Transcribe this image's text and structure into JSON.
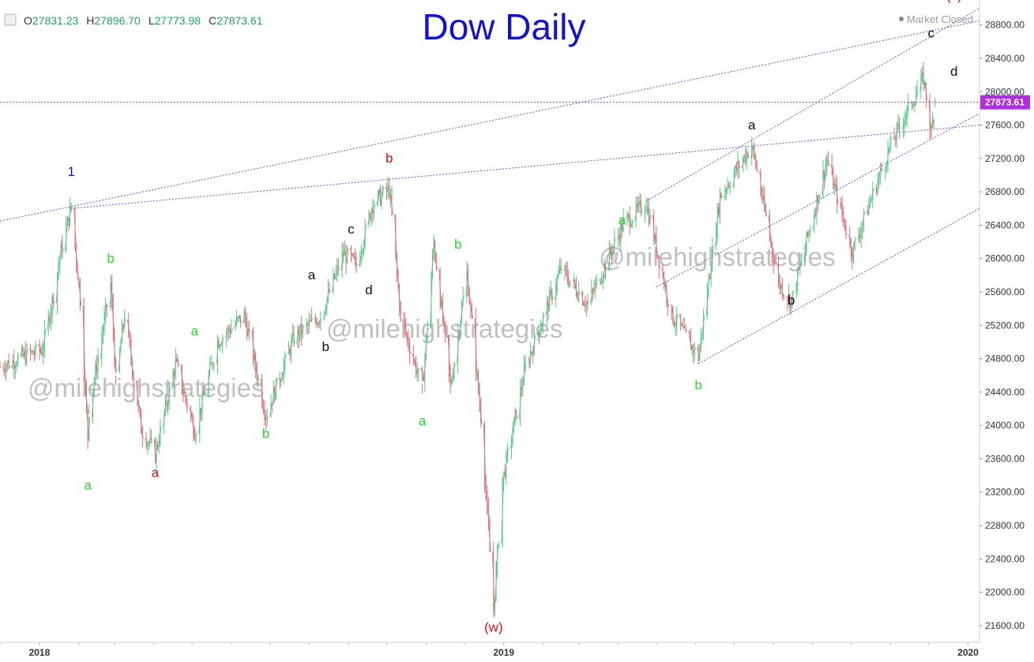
{
  "header": {
    "title": "Dow Daily",
    "status_label": "Market Closed",
    "ohlc": {
      "o_label": "O",
      "o_value": "27831.23",
      "h_label": "H",
      "h_value": "27896.70",
      "l_label": "L",
      "l_value": "27773.98",
      "c_label": "C",
      "c_value": "27873.61"
    }
  },
  "watermark": "@milehighstrategies",
  "colors": {
    "title": "#1010d8",
    "up": "#5ac88a",
    "down": "#e0707a",
    "price_line": "#b030e0",
    "trendline": "#5a5ae0",
    "label_green": "#22dd22",
    "label_red": "#e01010",
    "label_blue": "#1010c8",
    "label_black": "#111111",
    "watermark": "#c0c0c0",
    "ohlc_value": "#27a06a"
  },
  "chart_data": {
    "type": "candlestick",
    "title": "Dow Daily",
    "ylim": [
      21400,
      29100
    ],
    "y_ticks": [
      "28800.00",
      "28400.00",
      "28000.00",
      "27600.00",
      "27200.00",
      "26800.00",
      "26400.00",
      "26000.00",
      "25600.00",
      "25200.00",
      "24800.00",
      "24400.00",
      "24000.00",
      "23600.00",
      "23200.00",
      "22800.00",
      "22400.00",
      "22000.00",
      "21600.00"
    ],
    "x_ticks": [
      {
        "label": "2018",
        "date": "2018-01-01"
      },
      {
        "label": "2019",
        "date": "2019-01-01"
      },
      {
        "label": "2020",
        "date": "2020-01-01"
      }
    ],
    "x_range": [
      "2017-12-01",
      "2020-01-10"
    ],
    "last_price": 27873.61,
    "last_price_label": "27873.61",
    "price_path": [
      [
        "2017-12-01",
        24700
      ],
      [
        "2017-12-15",
        24800
      ],
      [
        "2018-01-03",
        24900
      ],
      [
        "2018-01-10",
        25400
      ],
      [
        "2018-01-18",
        26100
      ],
      [
        "2018-01-26",
        26616
      ],
      [
        "2018-02-02",
        25520
      ],
      [
        "2018-02-08",
        23860
      ],
      [
        "2018-02-09",
        24190
      ],
      [
        "2018-02-26",
        25700
      ],
      [
        "2018-03-02",
        24540
      ],
      [
        "2018-03-09",
        25330
      ],
      [
        "2018-03-22",
        23960
      ],
      [
        "2018-04-02",
        23650
      ],
      [
        "2018-04-18",
        24750
      ],
      [
        "2018-05-03",
        23930
      ],
      [
        "2018-05-21",
        25010
      ],
      [
        "2018-06-11",
        25320
      ],
      [
        "2018-06-28",
        24120
      ],
      [
        "2018-07-20",
        25050
      ],
      [
        "2018-08-10",
        25310
      ],
      [
        "2018-08-28",
        26060
      ],
      [
        "2018-09-07",
        25920
      ],
      [
        "2018-09-20",
        26660
      ],
      [
        "2018-10-03",
        26830
      ],
      [
        "2018-10-12",
        25300
      ],
      [
        "2018-10-29",
        24440
      ],
      [
        "2018-11-07",
        26190
      ],
      [
        "2018-11-20",
        24460
      ],
      [
        "2018-12-03",
        25830
      ],
      [
        "2018-12-14",
        24100
      ],
      [
        "2018-12-24",
        21790
      ],
      [
        "2018-12-31",
        23330
      ],
      [
        "2019-01-18",
        24700
      ],
      [
        "2019-02-15",
        25880
      ],
      [
        "2019-03-08",
        25450
      ],
      [
        "2019-04-05",
        26420
      ],
      [
        "2019-04-23",
        26660
      ],
      [
        "2019-05-13",
        25320
      ],
      [
        "2019-06-03",
        24820
      ],
      [
        "2019-06-20",
        26750
      ],
      [
        "2019-07-15",
        27360
      ],
      [
        "2019-08-05",
        25710
      ],
      [
        "2019-08-15",
        25480
      ],
      [
        "2019-09-12",
        27180
      ],
      [
        "2019-10-02",
        26080
      ],
      [
        "2019-10-18",
        26770
      ],
      [
        "2019-11-01",
        27350
      ],
      [
        "2019-11-12",
        27690
      ],
      [
        "2019-11-27",
        28160
      ],
      [
        "2019-12-03",
        27500
      ],
      [
        "2019-12-06",
        27873
      ]
    ],
    "trendlines": [
      {
        "name": "upper channel",
        "from": [
          "2017-12-01",
          26450
        ],
        "to": [
          "2020-01-10",
          28850
        ]
      },
      {
        "name": "middle line",
        "from": [
          "2018-01-26",
          26600
        ],
        "to": [
          "2020-01-10",
          27600
        ]
      },
      {
        "name": "c channel top",
        "from": [
          "2019-04-23",
          26690
        ],
        "to": [
          "2020-01-10",
          29000
        ]
      },
      {
        "name": "channel mid",
        "from": [
          "2019-05-01",
          25660
        ],
        "to": [
          "2020-01-10",
          27740
        ]
      },
      {
        "name": "channel bottom",
        "from": [
          "2019-06-03",
          24740
        ],
        "to": [
          "2020-01-10",
          26600
        ]
      }
    ],
    "wave_labels": [
      {
        "text": "1",
        "color": "blue",
        "date": "2018-01-26",
        "y": 26990
      },
      {
        "text": "b",
        "color": "green",
        "date": "2018-02-26",
        "y": 25950
      },
      {
        "text": "a",
        "color": "green",
        "date": "2018-02-08",
        "y": 23230
      },
      {
        "text": "a",
        "color": "red",
        "date": "2018-04-02",
        "y": 23380
      },
      {
        "text": "a",
        "color": "green",
        "date": "2018-05-03",
        "y": 25080
      },
      {
        "text": "b",
        "color": "green",
        "date": "2018-06-28",
        "y": 23850
      },
      {
        "text": "a",
        "color": "black",
        "date": "2018-08-03",
        "y": 25750
      },
      {
        "text": "b",
        "color": "black",
        "date": "2018-08-14",
        "y": 24890
      },
      {
        "text": "c",
        "color": "black",
        "date": "2018-09-03",
        "y": 26300
      },
      {
        "text": "d",
        "color": "black",
        "date": "2018-09-17",
        "y": 25570
      },
      {
        "text": "b",
        "color": "red",
        "date": "2018-10-03",
        "y": 27150
      },
      {
        "text": "a",
        "color": "green",
        "date": "2018-10-29",
        "y": 24000
      },
      {
        "text": "b",
        "color": "green",
        "date": "2018-11-26",
        "y": 26120
      },
      {
        "text": "(w)",
        "color": "red",
        "date": "2018-12-24",
        "y": 21530
      },
      {
        "text": "a",
        "color": "green",
        "date": "2019-04-04",
        "y": 26410
      },
      {
        "text": "b",
        "color": "green",
        "date": "2019-06-03",
        "y": 24430
      },
      {
        "text": "a",
        "color": "black",
        "date": "2019-07-15",
        "y": 27550
      },
      {
        "text": "b",
        "color": "black",
        "date": "2019-08-15",
        "y": 25450
      },
      {
        "text": "c",
        "color": "black",
        "date": "2019-12-03",
        "y": 28650
      },
      {
        "text": "d",
        "color": "black",
        "date": "2019-12-21",
        "y": 28190
      },
      {
        "text": "(x)",
        "color": "red",
        "date": "2019-12-21",
        "y": 29100
      }
    ]
  }
}
